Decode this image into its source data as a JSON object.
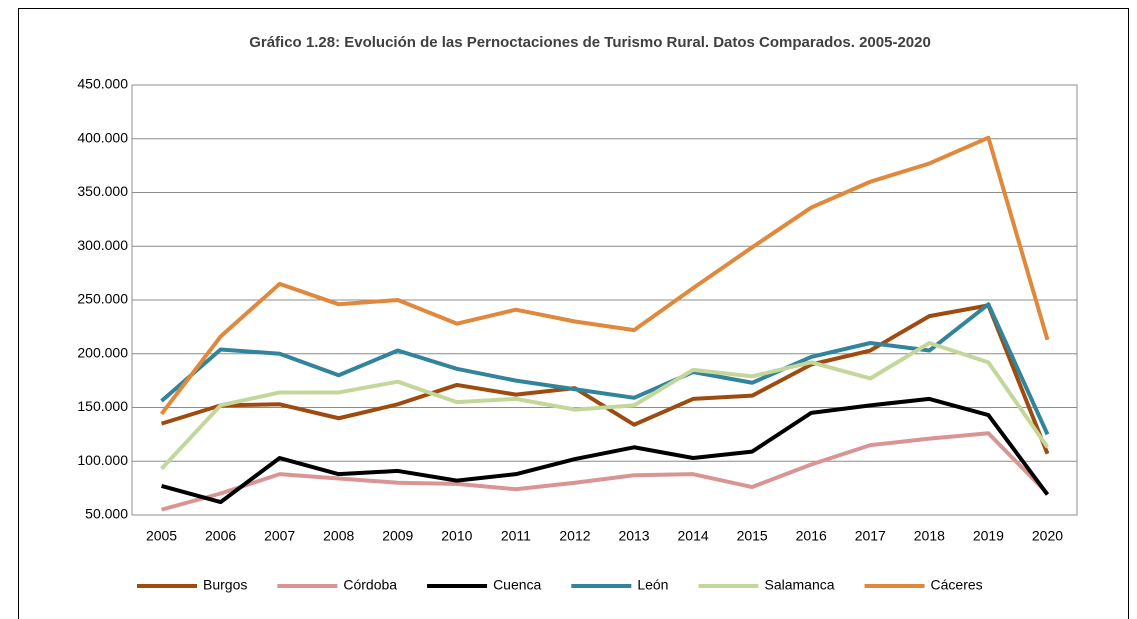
{
  "chart_data": {
    "type": "line",
    "title": "Gráfico 1.28: Evolución de las Pernoctaciones de Turismo Rural. Datos Comparados. 2005-2020",
    "categories": [
      "2005",
      "2006",
      "2007",
      "2008",
      "2009",
      "2010",
      "2011",
      "2012",
      "2013",
      "2014",
      "2015",
      "2016",
      "2017",
      "2018",
      "2019",
      "2020"
    ],
    "series": [
      {
        "name": "Burgos",
        "color": "#9e4b10",
        "values": [
          135000,
          152000,
          153000,
          140000,
          153000,
          171000,
          162000,
          168000,
          134000,
          158000,
          161000,
          190000,
          203000,
          235000,
          245000,
          107000
        ]
      },
      {
        "name": "Córdoba",
        "color": "#d99594",
        "values": [
          55000,
          70000,
          88000,
          84000,
          80000,
          79000,
          74000,
          80000,
          87000,
          88000,
          76000,
          97000,
          115000,
          121000,
          126000,
          70000
        ]
      },
      {
        "name": "Cuenca",
        "color": "#000000",
        "values": [
          77000,
          62000,
          103000,
          88000,
          91000,
          82000,
          88000,
          102000,
          113000,
          103000,
          109000,
          145000,
          152000,
          158000,
          143000,
          69000
        ]
      },
      {
        "name": "León",
        "color": "#31849b",
        "values": [
          156000,
          204000,
          200000,
          180000,
          203000,
          186000,
          175000,
          167000,
          159000,
          183000,
          173000,
          197000,
          210000,
          203000,
          246000,
          125000
        ]
      },
      {
        "name": "Salamanca",
        "color": "#c4d79b",
        "values": [
          93000,
          152000,
          164000,
          164000,
          174000,
          155000,
          158000,
          148000,
          152000,
          185000,
          179000,
          192000,
          177000,
          210000,
          192000,
          113000
        ]
      },
      {
        "name": "Cáceres",
        "color": "#e0883b",
        "values": [
          144000,
          216000,
          265000,
          246000,
          250000,
          228000,
          241000,
          230000,
          222000,
          261000,
          299000,
          336000,
          360000,
          377000,
          401000,
          213000
        ]
      }
    ],
    "ylim": [
      50000,
      450000
    ],
    "yticks": [
      {
        "value": 50000,
        "label": "50.000"
      },
      {
        "value": 100000,
        "label": "100.000"
      },
      {
        "value": 150000,
        "label": "150.000"
      },
      {
        "value": 200000,
        "label": "200.000"
      },
      {
        "value": 250000,
        "label": "250.000"
      },
      {
        "value": 300000,
        "label": "300.000"
      },
      {
        "value": 350000,
        "label": "350.000"
      },
      {
        "value": 400000,
        "label": "400.000"
      },
      {
        "value": 450000,
        "label": "450.000"
      }
    ],
    "grid": true,
    "legend": "bottom"
  }
}
